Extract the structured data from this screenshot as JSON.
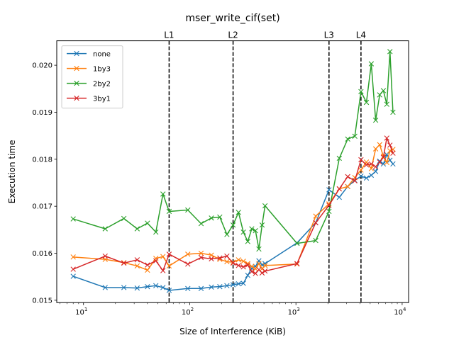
{
  "chart_data": {
    "type": "line",
    "title": "mser_write_cif(set)",
    "xlabel": "Size of Interference (KiB)",
    "ylabel": "Execution time",
    "xscale": "log",
    "xlim": [
      5.6,
      11500
    ],
    "ylim": [
      0.01495,
      0.02052
    ],
    "x_ticks": [
      {
        "value": 10,
        "base": "10",
        "exp": "1"
      },
      {
        "value": 100,
        "base": "10",
        "exp": "2"
      },
      {
        "value": 1000,
        "base": "10",
        "exp": "3"
      },
      {
        "value": 10000,
        "base": "10",
        "exp": "4"
      }
    ],
    "y_ticks": [
      {
        "value": 0.015,
        "label": "0.015"
      },
      {
        "value": 0.016,
        "label": "0.016"
      },
      {
        "value": 0.017,
        "label": "0.017"
      },
      {
        "value": 0.018,
        "label": "0.018"
      },
      {
        "value": 0.019,
        "label": "0.019"
      },
      {
        "value": 0.02,
        "label": "0.020"
      }
    ],
    "vlines": [
      {
        "label": "L1",
        "x": 64
      },
      {
        "label": "L2",
        "x": 256
      },
      {
        "label": "L3",
        "x": 2048
      },
      {
        "label": "L4",
        "x": 4096
      }
    ],
    "legend_position": "upper-left",
    "grid": false,
    "x": [
      8,
      16,
      24,
      32,
      40,
      48,
      56,
      64,
      96,
      128,
      160,
      192,
      224,
      256,
      288,
      320,
      352,
      384,
      416,
      448,
      480,
      512,
      1024,
      1536,
      2048,
      2560,
      3072,
      3584,
      4096,
      4608,
      5120,
      5632,
      6144,
      6656,
      7168,
      7680,
      8192
    ],
    "series": [
      {
        "name": "none",
        "color": "#1f77b4",
        "values": [
          0.01551,
          0.01527,
          0.01527,
          0.01526,
          0.01529,
          0.01531,
          0.01527,
          0.01521,
          0.01525,
          0.01525,
          0.01528,
          0.01529,
          0.01531,
          0.01533,
          0.01535,
          0.01536,
          0.01553,
          0.01568,
          0.01572,
          0.01584,
          0.01575,
          0.01578,
          0.01622,
          0.01665,
          0.01735,
          0.01719,
          0.01742,
          0.01755,
          0.01764,
          0.0176,
          0.01766,
          0.01774,
          0.01796,
          0.0179,
          0.0181,
          0.01798,
          0.0179
        ]
      },
      {
        "name": "1by3",
        "color": "#ff7f0e",
        "values": [
          0.01592,
          0.01587,
          0.0158,
          0.01573,
          0.01564,
          0.01589,
          0.01593,
          0.01573,
          0.01598,
          0.016,
          0.01596,
          0.01587,
          0.01582,
          0.01581,
          0.01586,
          0.01583,
          0.01578,
          0.01572,
          0.01567,
          0.01578,
          0.01567,
          0.01574,
          0.01577,
          0.01679,
          0.01705,
          0.01737,
          0.01742,
          0.01761,
          0.01777,
          0.01794,
          0.0178,
          0.01822,
          0.01831,
          0.01806,
          0.01793,
          0.01818,
          0.01821
        ]
      },
      {
        "name": "2by2",
        "color": "#2ca02c",
        "values": [
          0.01673,
          0.01652,
          0.01674,
          0.01652,
          0.01664,
          0.01645,
          0.01726,
          0.01689,
          0.01692,
          0.01663,
          0.01675,
          0.01677,
          0.0164,
          0.0166,
          0.01687,
          0.01645,
          0.01625,
          0.01652,
          0.01648,
          0.01609,
          0.0166,
          0.01701,
          0.01621,
          0.01627,
          0.01689,
          0.01802,
          0.01843,
          0.01849,
          0.01944,
          0.01921,
          0.02003,
          0.01883,
          0.01937,
          0.01946,
          0.01917,
          0.02029,
          0.019
        ]
      },
      {
        "name": "3by1",
        "color": "#d62728",
        "values": [
          0.01566,
          0.01594,
          0.01579,
          0.01586,
          0.01575,
          0.01584,
          0.01563,
          0.01598,
          0.01577,
          0.01591,
          0.01588,
          0.0159,
          0.01594,
          0.01579,
          0.01574,
          0.01571,
          0.01575,
          0.01561,
          0.01557,
          0.01565,
          0.01558,
          0.01562,
          0.01578,
          0.01665,
          0.01702,
          0.01737,
          0.01763,
          0.01754,
          0.01799,
          0.01788,
          0.0179,
          0.01784,
          0.01794,
          0.01804,
          0.01845,
          0.0183,
          0.01813
        ]
      }
    ]
  }
}
